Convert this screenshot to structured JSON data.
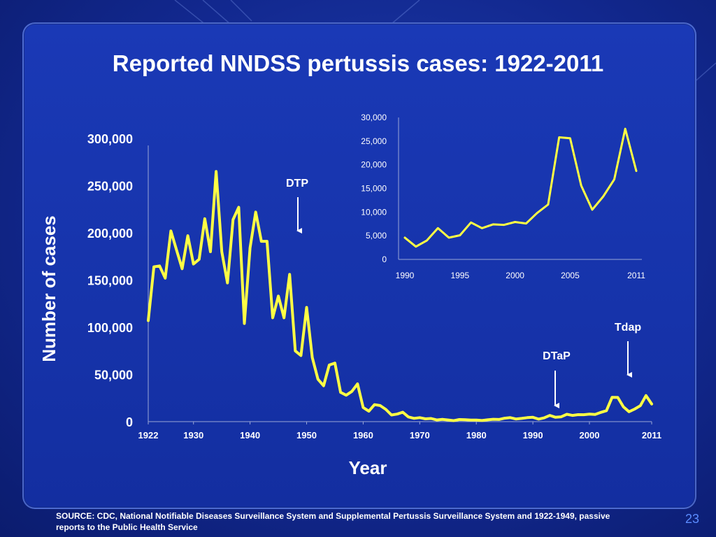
{
  "slide": {
    "title": "Reported  NNDSS pertussis cases: 1922-2011",
    "source": "SOURCE: CDC, National Notifiable Diseases Surveillance System and Supplemental Pertussis Surveillance System and 1922-1949, passive reports to the Public Health Service",
    "slide_number": "23"
  },
  "colors": {
    "line": "#ffff44",
    "text": "#ffffff",
    "axis": "#9aa6d6",
    "background": "#1633aa"
  },
  "chart_data": [
    {
      "type": "line",
      "title": "",
      "xlabel": "Year",
      "ylabel": "Number of cases",
      "xlim": [
        1922,
        2011
      ],
      "ylim": [
        0,
        300000
      ],
      "x_ticks": [
        1922,
        1930,
        1940,
        1950,
        1960,
        1970,
        1980,
        1990,
        2000,
        2011
      ],
      "x_tick_labels": [
        "1922",
        "1930",
        "1940",
        "1950",
        "1960",
        "1970",
        "1980",
        "1990",
        "2000",
        "2011"
      ],
      "y_ticks": [
        0,
        50000,
        100000,
        150000,
        200000,
        250000,
        300000
      ],
      "y_tick_labels": [
        "0",
        "50,000",
        "100,000",
        "150,000",
        "200,000",
        "250,000",
        "300,000"
      ],
      "grid": false,
      "series": [
        {
          "x": [
            1922,
            1923,
            1924,
            1925,
            1926,
            1927,
            1928,
            1929,
            1930,
            1931,
            1932,
            1933,
            1934,
            1935,
            1936,
            1937,
            1938,
            1939,
            1940,
            1941,
            1942,
            1943,
            1944,
            1945,
            1946,
            1947,
            1948,
            1949,
            1950,
            1951,
            1952,
            1953,
            1954,
            1955,
            1956,
            1957,
            1958,
            1959,
            1960,
            1961,
            1962,
            1963,
            1964,
            1965,
            1966,
            1967,
            1968,
            1969,
            1970,
            1971,
            1972,
            1973,
            1974,
            1975,
            1976,
            1977,
            1978,
            1979,
            1980,
            1981,
            1982,
            1983,
            1984,
            1985,
            1986,
            1987,
            1988,
            1989,
            1990,
            1991,
            1992,
            1993,
            1994,
            1995,
            1996,
            1997,
            1998,
            1999,
            2000,
            2001,
            2002,
            2003,
            2004,
            2005,
            2006,
            2007,
            2008,
            2009,
            2010,
            2011
          ],
          "y": [
            107000,
            164000,
            165000,
            152000,
            202000,
            182000,
            162000,
            197000,
            167000,
            172000,
            215000,
            180000,
            265000,
            180000,
            147000,
            214000,
            227000,
            104000,
            184000,
            222000,
            191000,
            191000,
            110000,
            133000,
            110000,
            156000,
            75000,
            70000,
            121000,
            68000,
            45000,
            38000,
            60000,
            62000,
            31000,
            28000,
            32000,
            40000,
            15000,
            11000,
            18000,
            17000,
            13000,
            7000,
            8000,
            10000,
            5000,
            3500,
            4200,
            3000,
            3300,
            1800,
            2400,
            1800,
            1000,
            2200,
            2000,
            1600,
            1700,
            1200,
            1900,
            2500,
            2300,
            3600,
            4200,
            2800,
            3400,
            4200,
            4600,
            2700,
            4000,
            6600,
            4600,
            5100,
            7800,
            6600,
            7400,
            7300,
            7900,
            7600,
            9800,
            11600,
            25800,
            25600,
            15600,
            10500,
            13300,
            16900,
            27600,
            18700
          ]
        }
      ],
      "annotations": [
        {
          "label": "DTP",
          "x": 1949,
          "y": 70000
        },
        {
          "label": "DTaP",
          "x": 1996,
          "y": 5000
        },
        {
          "label": "Tdap",
          "x": 2005,
          "y": 40000
        }
      ]
    },
    {
      "type": "line",
      "title": "",
      "xlabel": "",
      "ylabel": "",
      "xlim": [
        1990,
        2011
      ],
      "ylim": [
        0,
        30000
      ],
      "x_ticks": [
        1990,
        1995,
        2000,
        2005,
        2011
      ],
      "x_tick_labels": [
        "1990",
        "1995",
        "2000",
        "2005",
        "2011"
      ],
      "y_ticks": [
        0,
        5000,
        10000,
        15000,
        20000,
        25000,
        30000
      ],
      "y_tick_labels": [
        "0",
        "5,000",
        "10,000",
        "15,000",
        "20,000",
        "25,000",
        "30,000"
      ],
      "grid": false,
      "series": [
        {
          "x": [
            1990,
            1991,
            1992,
            1993,
            1994,
            1995,
            1996,
            1997,
            1998,
            1999,
            2000,
            2001,
            2002,
            2003,
            2004,
            2005,
            2006,
            2007,
            2008,
            2009,
            2010,
            2011
          ],
          "y": [
            4600,
            2700,
            4000,
            6600,
            4600,
            5100,
            7800,
            6600,
            7400,
            7300,
            7900,
            7600,
            9800,
            11600,
            25800,
            25600,
            15600,
            10500,
            13300,
            16900,
            27600,
            18700
          ]
        }
      ]
    }
  ]
}
